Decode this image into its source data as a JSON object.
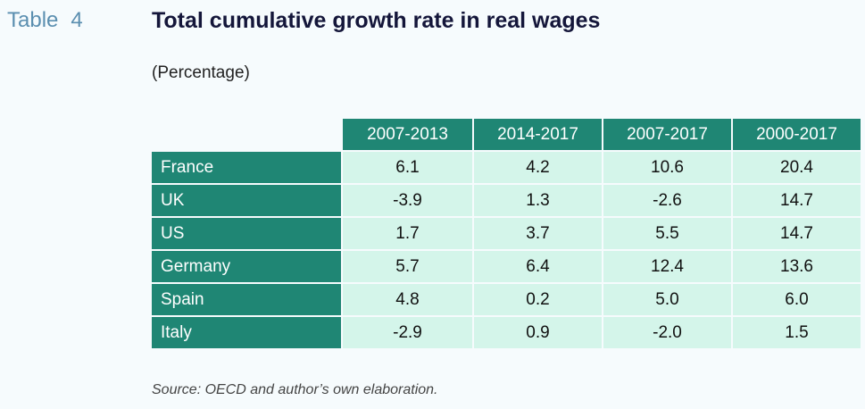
{
  "label": {
    "word": "Table",
    "number": "4"
  },
  "title": "Total cumulative growth rate in real wages",
  "subtitle": "(Percentage)",
  "columns": [
    "2007-2013",
    "2014-2017",
    "2007-2017",
    "2000-2017"
  ],
  "rows": [
    {
      "country": "France",
      "values": [
        "6.1",
        "4.2",
        "10.6",
        "20.4"
      ]
    },
    {
      "country": "UK",
      "values": [
        "-3.9",
        "1.3",
        "-2.6",
        "14.7"
      ]
    },
    {
      "country": "US",
      "values": [
        "1.7",
        "3.7",
        "5.5",
        "14.7"
      ]
    },
    {
      "country": "Germany",
      "values": [
        "5.7",
        "6.4",
        "12.4",
        "13.6"
      ]
    },
    {
      "country": "Spain",
      "values": [
        "4.8",
        "0.2",
        "5.0",
        "6.0"
      ]
    },
    {
      "country": "Italy",
      "values": [
        "-2.9",
        "0.9",
        "-2.0",
        "1.5"
      ]
    }
  ],
  "source": "Source: OECD and author’s own elaboration.",
  "colors": {
    "header_bg": "#1f8674",
    "cell_bg": "#d4f5ea",
    "label_color": "#5b8fb0",
    "title_color": "#14163a"
  }
}
